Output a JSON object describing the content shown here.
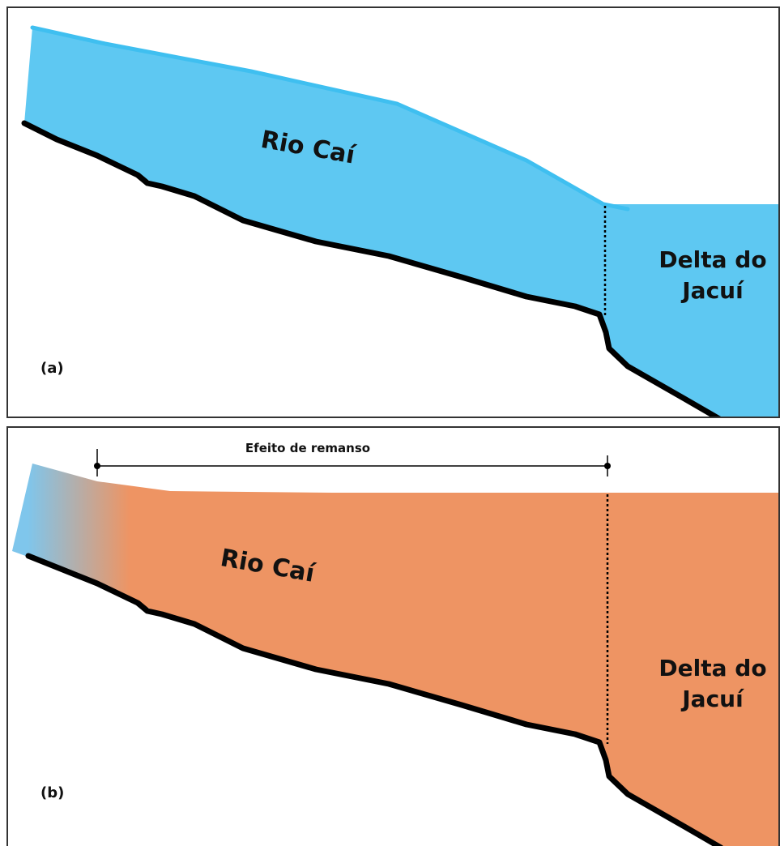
{
  "panel_a": {
    "tag": "(a)",
    "river_label": "Rio Caí",
    "delta_label_line1": "Delta do",
    "delta_label_line2": "Jacuí",
    "water_color": "#5ec8f2",
    "surface_color": "#3fbff0"
  },
  "panel_b": {
    "tag": "(b)",
    "river_label": "Rio Caí",
    "delta_label_line1": "Delta do",
    "delta_label_line2": "Jacuí",
    "backwater_label": "Efeito de remanso",
    "water_color": "#ee9463",
    "upstream_color": "#7fc6ec"
  },
  "colors": {
    "bed": "#000000",
    "divider": "#000000"
  }
}
